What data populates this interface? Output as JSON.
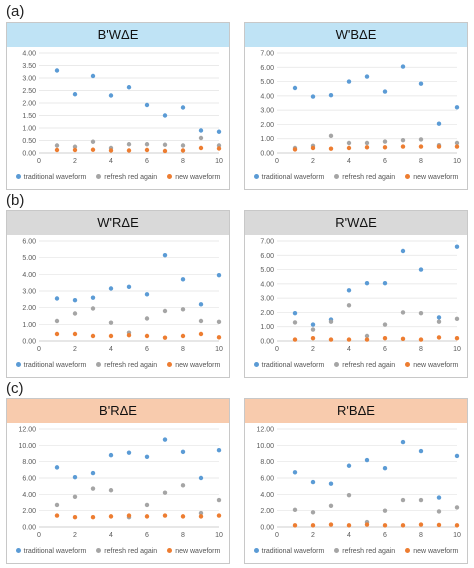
{
  "panel_labels": {
    "a": "(a)",
    "b": "(b)",
    "c": "(c)"
  },
  "colors": {
    "traditional": "#5b9bd5",
    "refresh": "#a5a5a5",
    "new": "#ed7d31",
    "title_bg_a": "#bfe3f5",
    "title_bg_b": "#d9d9d9",
    "title_bg_c": "#f8cbad"
  },
  "legend": {
    "traditional": "traditional waveform",
    "refresh": "refresh red again",
    "new": "new waveform"
  },
  "chart_data": [
    {
      "type": "scatter",
      "title": "B'WΔE",
      "title_color": "title_bg_a",
      "x": [
        1,
        2,
        3,
        4,
        5,
        6,
        7,
        8,
        9,
        10
      ],
      "xlim": [
        0,
        10
      ],
      "ylim": [
        0,
        4
      ],
      "yticks": [
        "0.00",
        "0.50",
        "1.00",
        "1.50",
        "2.00",
        "2.50",
        "3.00",
        "3.50",
        "4.00"
      ],
      "xticks": [
        "0",
        "2",
        "4",
        "6",
        "8",
        "10"
      ],
      "grid": true,
      "legend_position": "bottom",
      "series": [
        {
          "name": "traditional waveform",
          "values": [
            3.3,
            2.35,
            3.08,
            2.3,
            2.63,
            1.92,
            1.5,
            1.82,
            0.9,
            0.85
          ]
        },
        {
          "name": "refresh red again",
          "values": [
            0.3,
            0.25,
            0.45,
            0.2,
            0.35,
            0.35,
            0.33,
            0.3,
            0.6,
            0.3
          ]
        },
        {
          "name": "new waveform",
          "values": [
            0.12,
            0.12,
            0.13,
            0.1,
            0.1,
            0.12,
            0.08,
            0.1,
            0.2,
            0.18
          ]
        }
      ]
    },
    {
      "type": "scatter",
      "title": "W'BΔE",
      "title_color": "title_bg_a",
      "x": [
        1,
        2,
        3,
        4,
        5,
        6,
        7,
        8,
        9,
        10
      ],
      "xlim": [
        0,
        10
      ],
      "ylim": [
        0,
        7
      ],
      "yticks": [
        "0.00",
        "1.00",
        "2.00",
        "3.00",
        "4.00",
        "5.00",
        "6.00",
        "7.00"
      ],
      "xticks": [
        "0",
        "2",
        "4",
        "6",
        "8",
        "10"
      ],
      "grid": true,
      "legend_position": "bottom",
      "series": [
        {
          "name": "traditional waveform",
          "values": [
            4.55,
            3.95,
            4.05,
            5.0,
            5.35,
            4.3,
            6.05,
            4.85,
            2.05,
            3.2
          ]
        },
        {
          "name": "refresh red again",
          "values": [
            0.35,
            0.5,
            1.2,
            0.7,
            0.7,
            0.8,
            0.9,
            0.95,
            0.55,
            0.7
          ]
        },
        {
          "name": "new waveform",
          "values": [
            0.25,
            0.35,
            0.3,
            0.35,
            0.4,
            0.4,
            0.45,
            0.45,
            0.45,
            0.45
          ]
        }
      ]
    },
    {
      "type": "scatter",
      "title": "W'RΔE",
      "title_color": "title_bg_b",
      "x": [
        1,
        2,
        3,
        4,
        5,
        6,
        7,
        8,
        9,
        10
      ],
      "xlim": [
        0,
        10
      ],
      "ylim": [
        0,
        6
      ],
      "yticks": [
        "0.00",
        "1.00",
        "2.00",
        "3.00",
        "4.00",
        "5.00",
        "6.00"
      ],
      "xticks": [
        "0",
        "2",
        "4",
        "6",
        "8",
        "10"
      ],
      "grid": true,
      "legend_position": "bottom",
      "series": [
        {
          "name": "traditional waveform",
          "values": [
            2.55,
            2.45,
            2.6,
            3.15,
            3.25,
            2.8,
            5.15,
            3.7,
            2.2,
            3.95
          ]
        },
        {
          "name": "refresh red again",
          "values": [
            1.2,
            1.65,
            1.95,
            1.1,
            0.5,
            1.35,
            1.8,
            1.9,
            1.2,
            1.15
          ]
        },
        {
          "name": "new waveform",
          "values": [
            0.42,
            0.42,
            0.3,
            0.3,
            0.35,
            0.3,
            0.2,
            0.3,
            0.42,
            0.22
          ]
        }
      ]
    },
    {
      "type": "scatter",
      "title": "R'WΔE",
      "title_color": "title_bg_b",
      "x": [
        1,
        2,
        3,
        4,
        5,
        6,
        7,
        8,
        9,
        10
      ],
      "xlim": [
        0,
        10
      ],
      "ylim": [
        0,
        7
      ],
      "yticks": [
        "0.00",
        "1.00",
        "2.00",
        "3.00",
        "4.00",
        "5.00",
        "6.00",
        "7.00"
      ],
      "xticks": [
        "0",
        "2",
        "4",
        "6",
        "8",
        "10"
      ],
      "grid": true,
      "legend_position": "bottom",
      "series": [
        {
          "name": "traditional waveform",
          "values": [
            1.95,
            1.15,
            1.5,
            3.55,
            4.05,
            4.05,
            6.3,
            5.0,
            1.65,
            6.6
          ]
        },
        {
          "name": "refresh red again",
          "values": [
            1.3,
            0.8,
            1.35,
            2.5,
            0.35,
            1.15,
            2.0,
            1.95,
            1.35,
            1.55
          ]
        },
        {
          "name": "new waveform",
          "values": [
            0.1,
            0.2,
            0.1,
            0.1,
            0.1,
            0.2,
            0.15,
            0.1,
            0.25,
            0.2
          ]
        }
      ]
    },
    {
      "type": "scatter",
      "title": "B'RΔE",
      "title_color": "title_bg_c",
      "x": [
        1,
        2,
        3,
        4,
        5,
        6,
        7,
        8,
        9,
        10
      ],
      "xlim": [
        0,
        10
      ],
      "ylim": [
        0,
        12
      ],
      "yticks": [
        "0.00",
        "2.00",
        "4.00",
        "6.00",
        "8.00",
        "10.00",
        "12.00"
      ],
      "xticks": [
        "0",
        "2",
        "4",
        "6",
        "8",
        "10"
      ],
      "grid": true,
      "legend_position": "bottom",
      "series": [
        {
          "name": "traditional waveform",
          "values": [
            7.3,
            6.1,
            6.6,
            8.8,
            9.1,
            8.6,
            10.7,
            9.2,
            6.0,
            9.4
          ]
        },
        {
          "name": "refresh red again",
          "values": [
            2.7,
            3.7,
            4.7,
            4.5,
            1.2,
            2.7,
            4.2,
            5.1,
            1.7,
            3.3
          ]
        },
        {
          "name": "new waveform",
          "values": [
            1.4,
            1.2,
            1.2,
            1.3,
            1.4,
            1.3,
            1.4,
            1.3,
            1.3,
            1.4
          ]
        }
      ]
    },
    {
      "type": "scatter",
      "title": "R'BΔE",
      "title_color": "title_bg_c",
      "x": [
        1,
        2,
        3,
        4,
        5,
        6,
        7,
        8,
        9,
        10
      ],
      "xlim": [
        0,
        10
      ],
      "ylim": [
        0,
        12
      ],
      "yticks": [
        "0.00",
        "2.00",
        "4.00",
        "6.00",
        "8.00",
        "10.00",
        "12.00"
      ],
      "xticks": [
        "0",
        "2",
        "4",
        "6",
        "8",
        "10"
      ],
      "grid": true,
      "legend_position": "bottom",
      "series": [
        {
          "name": "traditional waveform",
          "values": [
            6.7,
            5.5,
            5.3,
            7.5,
            8.2,
            7.2,
            10.4,
            9.3,
            3.6,
            8.7
          ]
        },
        {
          "name": "refresh red again",
          "values": [
            2.1,
            1.8,
            2.6,
            3.9,
            0.6,
            2.0,
            3.3,
            3.3,
            1.9,
            2.4
          ]
        },
        {
          "name": "new waveform",
          "values": [
            0.2,
            0.2,
            0.3,
            0.2,
            0.3,
            0.2,
            0.2,
            0.3,
            0.25,
            0.2
          ]
        }
      ]
    }
  ]
}
